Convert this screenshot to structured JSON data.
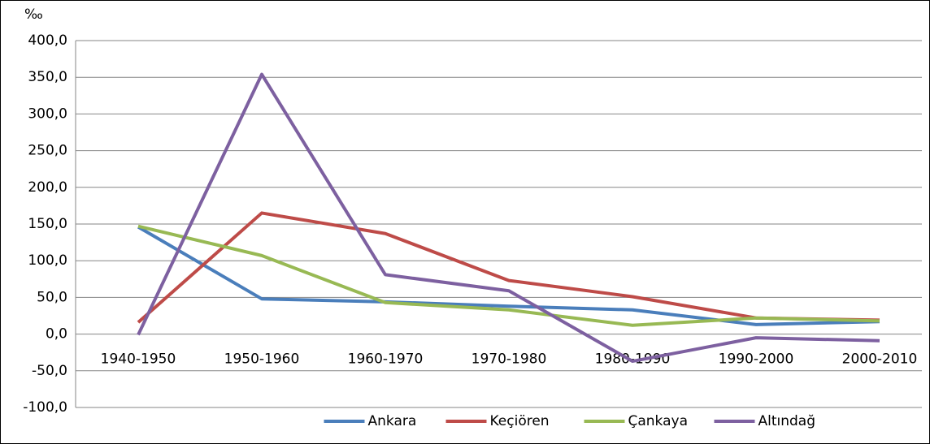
{
  "chart_data": {
    "type": "line",
    "y_label": "‰",
    "categories": [
      "1940-1950",
      "1950-1960",
      "1960-1970",
      "1970-1980",
      "1980-1990",
      "1990-2000",
      "2000-2010"
    ],
    "series": [
      {
        "name": "Ankara",
        "color": "#4a7ebb",
        "values": [
          146,
          48,
          44,
          38,
          33,
          13,
          17
        ]
      },
      {
        "name": "Keçiören",
        "color": "#be4b48",
        "values": [
          16,
          165,
          137,
          73,
          51,
          22,
          19
        ]
      },
      {
        "name": "Çankaya",
        "color": "#98b954",
        "values": [
          147,
          107,
          43,
          33,
          12,
          22,
          18
        ]
      },
      {
        "name": "Altındağ",
        "color": "#7d60a0",
        "values": [
          -1,
          354,
          81,
          59,
          -37,
          -5,
          -9
        ]
      }
    ],
    "ylim": [
      -100,
      400
    ],
    "yticks": [
      {
        "value": -100,
        "label": "-100,0"
      },
      {
        "value": -50,
        "label": "-50,0"
      },
      {
        "value": 0,
        "label": "0,0"
      },
      {
        "value": 50,
        "label": "50,0"
      },
      {
        "value": 100,
        "label": "100,0"
      },
      {
        "value": 150,
        "label": "150,0"
      },
      {
        "value": 200,
        "label": "200,0"
      },
      {
        "value": 250,
        "label": "250,0"
      },
      {
        "value": 300,
        "label": "300,0"
      },
      {
        "value": 350,
        "label": "350,0"
      },
      {
        "value": 400,
        "label": "400,0"
      }
    ],
    "grid": true,
    "legend": "bottom"
  }
}
